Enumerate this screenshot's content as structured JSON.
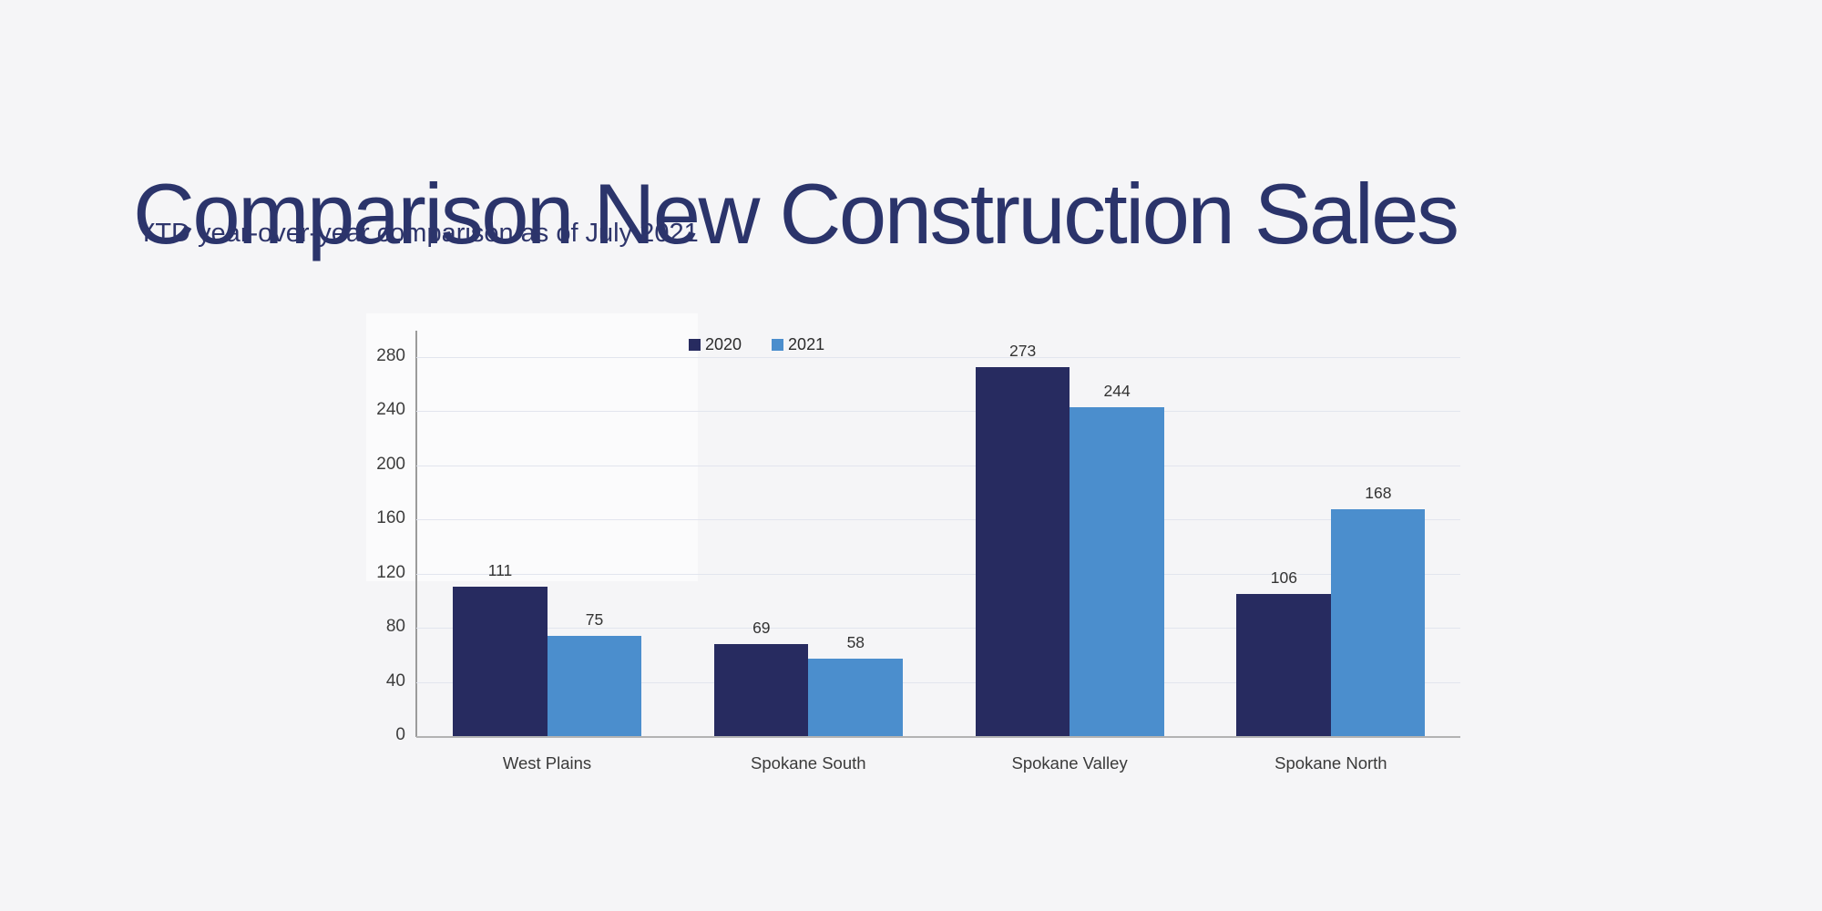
{
  "page": {
    "title": "Comparison New Construction Sales",
    "subtitle": "YTD year-over-year comparison as of July 2021"
  },
  "colors": {
    "background": "#f5f5f7",
    "title_text": "#2b346b",
    "series_2020": "#272b60",
    "series_2021": "#4b8ecd",
    "gridline": "#e2e5ee",
    "y_axis_line": "#9b9b9b",
    "x_axis_line": "#b3b3b3",
    "label_text": "#333333"
  },
  "chart_data": {
    "type": "bar",
    "title": "",
    "categories": [
      "West Plains",
      "Spokane South",
      "Spokane Valley",
      "Spokane North"
    ],
    "series": [
      {
        "name": "2020",
        "color": "#272b60",
        "values": [
          111,
          69,
          273,
          106
        ]
      },
      {
        "name": "2021",
        "color": "#4b8ecd",
        "values": [
          75,
          58,
          244,
          168
        ]
      }
    ],
    "yticks": [
      0,
      40,
      80,
      120,
      160,
      200,
      240,
      280
    ],
    "ylim": [
      0,
      280
    ],
    "grid": true,
    "legend_position": "top",
    "value_labels": true
  }
}
